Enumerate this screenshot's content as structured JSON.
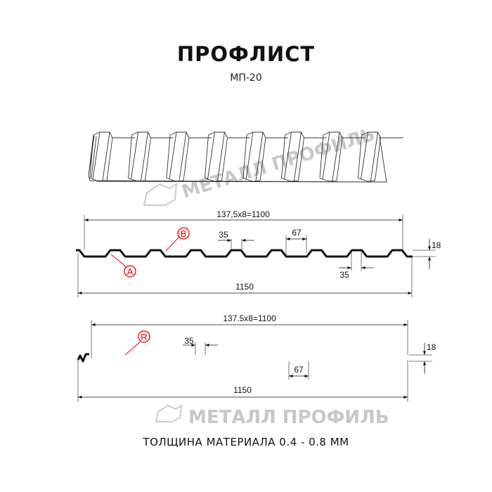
{
  "header": {
    "title": "ПРОФЛИСТ",
    "subtitle": "МП-20"
  },
  "watermark": {
    "text": "МЕТАЛЛ ПРОФИЛЬ"
  },
  "profile_a": {
    "pitch_label": "137,5x8=1100",
    "width_label": "1150",
    "rib_top_label": "35",
    "rib_bottom_label": "35",
    "gap_label": "67",
    "height_label": "18",
    "marker_a": "A",
    "marker_b": "B"
  },
  "profile_b": {
    "pitch_label": "137.5x8=1100",
    "width_label": "1150",
    "rib_top_label": "35",
    "gap_label": "67",
    "height_label": "18",
    "marker_r": "R"
  },
  "footer": {
    "text": "ТОЛЩИНА МАТЕРИАЛА 0.4 - 0.8 ММ"
  },
  "colors": {
    "line": "#111111",
    "marker": "#e00000",
    "watermark": "#c8c8c8"
  }
}
